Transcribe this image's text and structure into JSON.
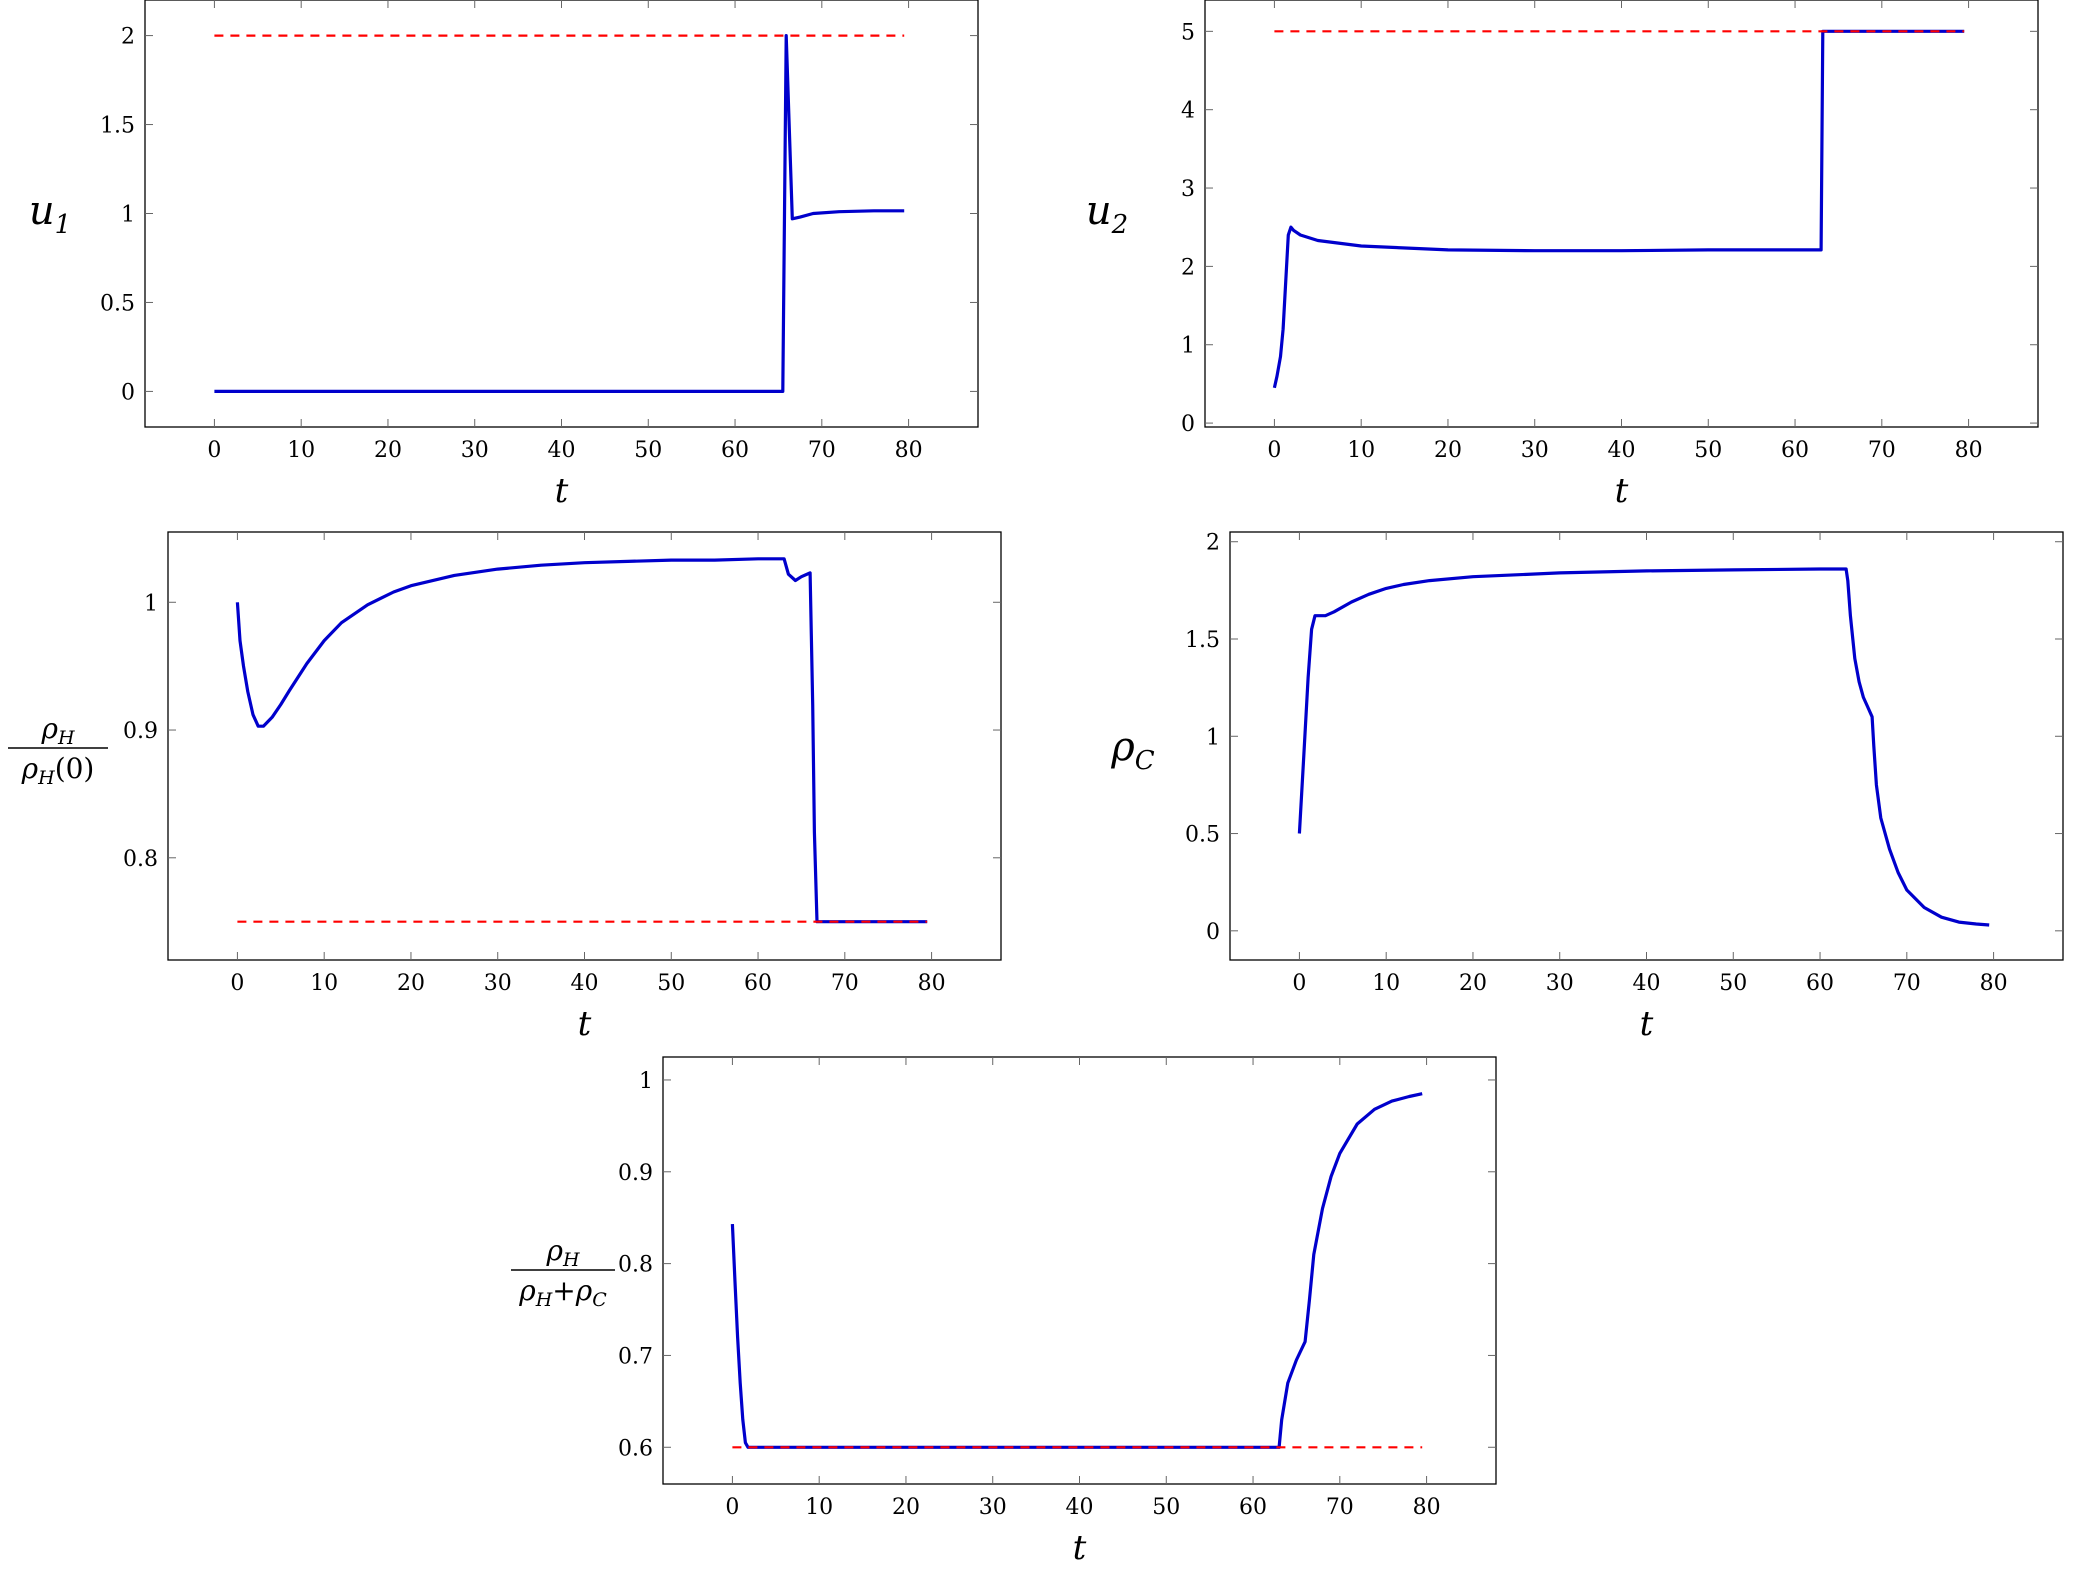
{
  "chart_data": [
    {
      "id": "u1",
      "type": "line",
      "xlabel": "t",
      "ylabel": {
        "main": "u",
        "sub": "1"
      },
      "xlim": [
        -8,
        88
      ],
      "ylim": [
        -0.2,
        2.2
      ],
      "xticks": [
        0,
        10,
        20,
        30,
        40,
        50,
        60,
        70,
        80
      ],
      "yticks": [
        0,
        0.5,
        1,
        1.5,
        2
      ],
      "ytick_labels": [
        "0",
        "0.5",
        "1",
        "1.5",
        "2"
      ],
      "series": [
        {
          "style": "solid",
          "color": "#0000cc",
          "x": [
            0,
            65.5,
            65.9,
            66.6,
            67.5,
            69,
            72,
            76,
            79.5
          ],
          "y": [
            0,
            0,
            2.0,
            0.97,
            0.98,
            1.0,
            1.01,
            1.015,
            1.015
          ]
        },
        {
          "style": "dashed",
          "color": "#ff0000",
          "x": [
            0,
            79.5
          ],
          "y": [
            2,
            2
          ]
        }
      ]
    },
    {
      "id": "u2",
      "type": "line",
      "xlabel": "t",
      "ylabel": {
        "main": "u",
        "sub": "2"
      },
      "xlim": [
        -8,
        88
      ],
      "ylim": [
        -0.05,
        5.4
      ],
      "xticks": [
        0,
        10,
        20,
        30,
        40,
        50,
        60,
        70,
        80
      ],
      "yticks": [
        0,
        1,
        2,
        3,
        4,
        5
      ],
      "ytick_labels": [
        "0",
        "1",
        "2",
        "3",
        "4",
        "5"
      ],
      "series": [
        {
          "style": "solid",
          "color": "#0000cc",
          "x": [
            0,
            0.3,
            0.7,
            1.0,
            1.3,
            1.6,
            1.9,
            2.2,
            3,
            5,
            10,
            20,
            30,
            40,
            50,
            60,
            63,
            63.2,
            70,
            79.5
          ],
          "y": [
            0.45,
            0.6,
            0.85,
            1.2,
            1.8,
            2.4,
            2.5,
            2.46,
            2.4,
            2.33,
            2.26,
            2.21,
            2.2,
            2.2,
            2.21,
            2.21,
            2.21,
            5.0,
            5.0,
            5.0
          ]
        },
        {
          "style": "dashed",
          "color": "#ff0000",
          "x": [
            0,
            79.5
          ],
          "y": [
            5,
            5
          ]
        }
      ]
    },
    {
      "id": "rhoH_norm",
      "type": "line",
      "xlabel": "t",
      "ylabel_fraction": {
        "num_main": "ρ",
        "num_sub": "H",
        "den_main": "ρ",
        "den_sub": "H",
        "den_tail": "(0)"
      },
      "xlim": [
        -8,
        88
      ],
      "ylim": [
        0.72,
        1.055
      ],
      "xticks": [
        0,
        10,
        20,
        30,
        40,
        50,
        60,
        70,
        80
      ],
      "yticks": [
        0.8,
        0.9,
        1
      ],
      "ytick_labels": [
        "0.8",
        "0.9",
        "1"
      ],
      "series": [
        {
          "style": "solid",
          "color": "#0000cc",
          "x": [
            0,
            0.3,
            0.7,
            1.2,
            1.8,
            2.4,
            3,
            4,
            5,
            6,
            8,
            10,
            12,
            15,
            18,
            20,
            25,
            30,
            35,
            40,
            45,
            50,
            55,
            60,
            63,
            63.5,
            64.3,
            65,
            66,
            66.3,
            66.5,
            66.8,
            70,
            79.5
          ],
          "y": [
            1.0,
            0.97,
            0.95,
            0.93,
            0.912,
            0.903,
            0.903,
            0.91,
            0.92,
            0.931,
            0.952,
            0.97,
            0.984,
            0.998,
            1.008,
            1.013,
            1.021,
            1.026,
            1.029,
            1.031,
            1.032,
            1.033,
            1.033,
            1.034,
            1.034,
            1.022,
            1.017,
            1.02,
            1.023,
            0.92,
            0.82,
            0.75,
            0.75,
            0.75
          ]
        },
        {
          "style": "dashed",
          "color": "#ff0000",
          "x": [
            0,
            79.5
          ],
          "y": [
            0.75,
            0.75
          ]
        }
      ]
    },
    {
      "id": "rhoC",
      "type": "line",
      "xlabel": "t",
      "ylabel": {
        "main": "ρ",
        "sub": "C"
      },
      "xlim": [
        -8,
        88
      ],
      "ylim": [
        -0.15,
        2.05
      ],
      "xticks": [
        0,
        10,
        20,
        30,
        40,
        50,
        60,
        70,
        80
      ],
      "yticks": [
        0,
        0.5,
        1,
        1.5,
        2
      ],
      "ytick_labels": [
        "0",
        "0.5",
        "1",
        "1.5",
        "2"
      ],
      "series": [
        {
          "style": "solid",
          "color": "#0000cc",
          "x": [
            0,
            0.5,
            1,
            1.4,
            1.8,
            2.2,
            3,
            4,
            6,
            8,
            10,
            12,
            15,
            20,
            25,
            30,
            40,
            50,
            60,
            63,
            63.2,
            63.5,
            64,
            64.5,
            65,
            65.5,
            66,
            66.2,
            66.5,
            67,
            68,
            69,
            70,
            72,
            74,
            76,
            78,
            79.5
          ],
          "y": [
            0.5,
            0.9,
            1.3,
            1.55,
            1.62,
            1.62,
            1.62,
            1.64,
            1.69,
            1.73,
            1.76,
            1.78,
            1.8,
            1.82,
            1.83,
            1.84,
            1.85,
            1.855,
            1.86,
            1.86,
            1.8,
            1.62,
            1.4,
            1.28,
            1.2,
            1.15,
            1.1,
            0.95,
            0.75,
            0.58,
            0.42,
            0.3,
            0.21,
            0.12,
            0.07,
            0.045,
            0.035,
            0.03
          ]
        }
      ]
    },
    {
      "id": "rhoH_frac",
      "type": "line",
      "xlabel": "t",
      "ylabel_fraction": {
        "num_main": "ρ",
        "num_sub": "H",
        "den_main": "ρ",
        "den_sub": "H",
        "den_plus": "+",
        "den_main2": "ρ",
        "den_sub2": "C"
      },
      "xlim": [
        -8,
        88
      ],
      "ylim": [
        0.56,
        1.025
      ],
      "xticks": [
        0,
        10,
        20,
        30,
        40,
        50,
        60,
        70,
        80
      ],
      "yticks": [
        0.6,
        0.7,
        0.8,
        0.9,
        1
      ],
      "ytick_labels": [
        "0.6",
        "0.7",
        "0.8",
        "0.9",
        "1"
      ],
      "series": [
        {
          "style": "solid",
          "color": "#0000cc",
          "x": [
            0,
            0.3,
            0.6,
            0.9,
            1.2,
            1.5,
            1.8,
            2.2,
            3,
            10,
            30,
            50,
            60,
            63,
            63.3,
            64,
            65,
            66,
            66.5,
            67,
            68,
            69,
            70,
            72,
            74,
            76,
            78,
            79.5
          ],
          "y": [
            0.843,
            0.78,
            0.72,
            0.67,
            0.63,
            0.605,
            0.6,
            0.6,
            0.6,
            0.6,
            0.6,
            0.6,
            0.6,
            0.6,
            0.63,
            0.67,
            0.695,
            0.715,
            0.76,
            0.81,
            0.86,
            0.895,
            0.92,
            0.952,
            0.968,
            0.977,
            0.982,
            0.985
          ]
        },
        {
          "style": "dashed",
          "color": "#ff0000",
          "x": [
            0,
            79.5
          ],
          "y": [
            0.6,
            0.6
          ]
        }
      ]
    }
  ]
}
